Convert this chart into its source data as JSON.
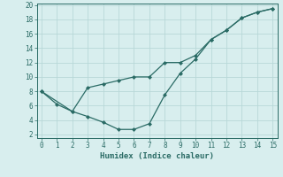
{
  "line1_x": [
    0,
    1,
    2,
    3,
    4,
    5,
    6,
    7,
    8,
    9,
    10,
    11,
    12,
    13,
    14,
    15
  ],
  "line1_y": [
    8,
    6.2,
    5.2,
    8.5,
    9.0,
    9.5,
    10.0,
    10.0,
    12.0,
    12.0,
    13.0,
    15.2,
    16.5,
    18.2,
    19.0,
    19.5
  ],
  "line2_x": [
    0,
    2,
    3,
    4,
    5,
    6,
    7,
    8,
    9,
    10,
    11,
    12,
    13,
    14,
    15
  ],
  "line2_y": [
    8,
    5.2,
    4.5,
    3.7,
    2.7,
    2.7,
    3.5,
    7.5,
    10.5,
    12.5,
    15.2,
    16.5,
    18.2,
    19.0,
    19.5
  ],
  "line_color": "#2a6b65",
  "bg_color": "#d8eeee",
  "grid_color": "#b8d8d8",
  "xlabel": "Humidex (Indice chaleur)",
  "xlim": [
    -0.3,
    15.3
  ],
  "ylim": [
    1.5,
    20.2
  ],
  "xticks": [
    0,
    1,
    2,
    3,
    4,
    5,
    6,
    7,
    8,
    9,
    10,
    11,
    12,
    13,
    14,
    15
  ],
  "yticks": [
    2,
    4,
    6,
    8,
    10,
    12,
    14,
    16,
    18,
    20
  ],
  "marker": "D",
  "markersize": 2,
  "linewidth": 0.9
}
